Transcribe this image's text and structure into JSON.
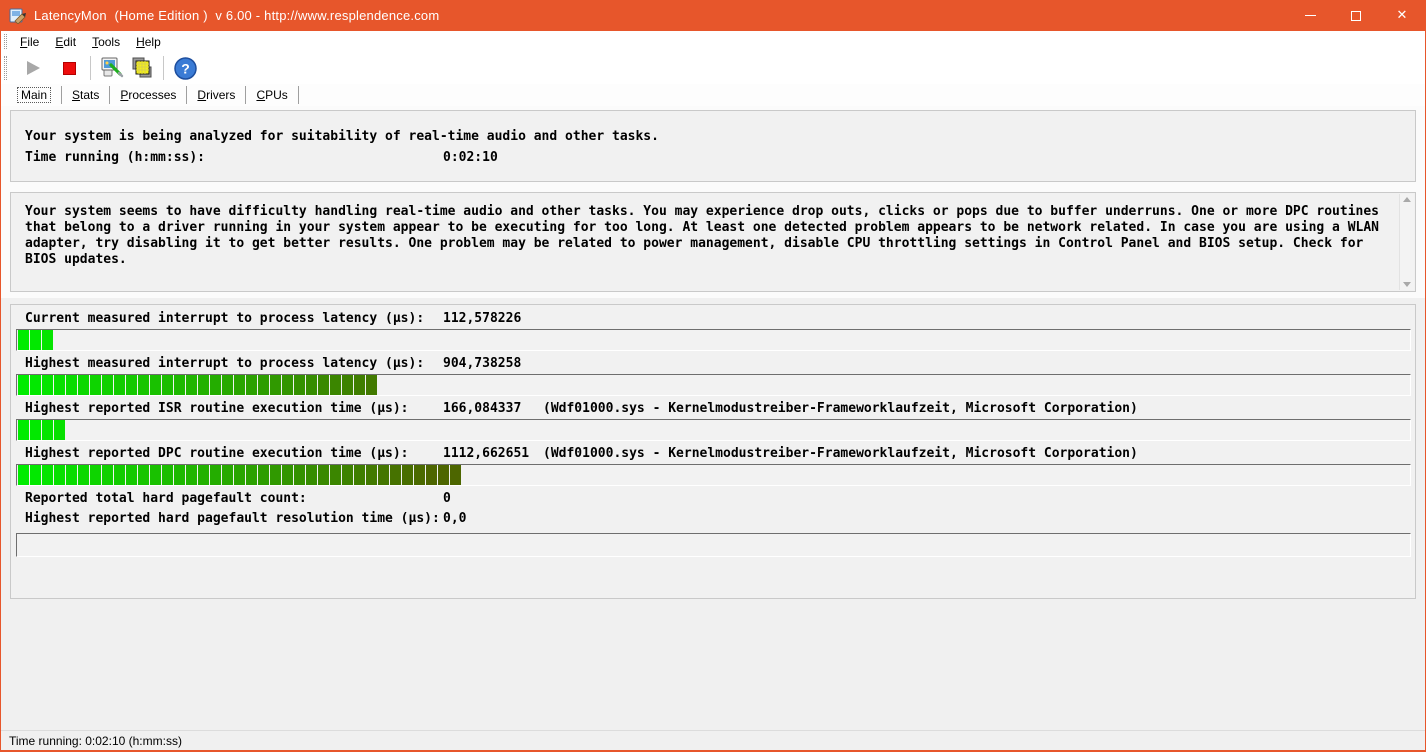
{
  "window": {
    "title": "LatencyMon  (Home Edition )  v 6.00 - http://www.resplendence.com"
  },
  "menu": {
    "items": [
      {
        "accel": "F",
        "rest": "ile"
      },
      {
        "accel": "E",
        "rest": "dit"
      },
      {
        "accel": "T",
        "rest": "ools"
      },
      {
        "accel": "H",
        "rest": "elp"
      }
    ]
  },
  "toolbar": {
    "buttons": [
      "play",
      "stop",
      "analyzer-options",
      "copy-report",
      "help"
    ]
  },
  "tabs": [
    {
      "accel": "",
      "rest": "Main",
      "selected": true
    },
    {
      "accel": "S",
      "rest": "tats",
      "selected": false
    },
    {
      "accel": "P",
      "rest": "rocesses",
      "selected": false
    },
    {
      "accel": "D",
      "rest": "rivers",
      "selected": false
    },
    {
      "accel": "C",
      "rest": "PUs",
      "selected": false
    }
  ],
  "analysis_panel": {
    "line1": "Your system is being analyzed for suitability of real-time audio and other tasks.",
    "time_label": "Time running (h:mm:ss):",
    "time_value": "0:02:10"
  },
  "report_panel": {
    "text": "Your system seems to have difficulty handling real-time audio and other tasks. You may experience drop outs, clicks or pops due to buffer underruns. One or more DPC routines that belong to a driver running in your system appear to be executing for too long. At least one detected problem appears to be network related. In case you are using a WLAN adapter, try disabling it to get better results. One problem may be related to power management, disable CPU throttling settings in Control Panel and BIOS setup. Check for BIOS updates."
  },
  "metrics": {
    "rows": [
      {
        "label": "Current measured interrupt to process latency (µs):",
        "value": "112,578226",
        "info": "",
        "has_bar": true,
        "bar_segments": 3
      },
      {
        "label": "Highest measured interrupt to process latency (µs):",
        "value": "904,738258",
        "info": "",
        "has_bar": true,
        "bar_segments": 30
      },
      {
        "label": "Highest reported ISR routine execution time (µs):",
        "value": "166,084337",
        "info": "(Wdf01000.sys - Kernelmodustreiber-Frameworklaufzeit, Microsoft Corporation)",
        "has_bar": true,
        "bar_segments": 4
      },
      {
        "label": "Highest reported DPC routine execution time (µs):",
        "value": "1112,662651",
        "info": "(Wdf01000.sys - Kernelmodustreiber-Frameworklaufzeit, Microsoft Corporation)",
        "has_bar": true,
        "bar_segments": 37
      },
      {
        "label": "Reported total hard pagefault count:",
        "value": "0",
        "info": "",
        "has_bar": false,
        "bar_segments": 0
      },
      {
        "label": "Highest reported hard pagefault resolution time (µs):",
        "value": "0,0",
        "info": "",
        "has_bar": false,
        "bar_segments": 0
      }
    ],
    "bar_colors": {
      "start_rgb": [
        0,
        236,
        0
      ],
      "end_rgb": [
        77,
        102,
        0
      ],
      "span": 34
    }
  },
  "statusbar": {
    "text": "Time running: 0:02:10  (h:mm:ss)"
  },
  "colors": {
    "accent_titlebar": "#E7562B",
    "stop_red": "#ED0C0C",
    "bar_bright_green": "#00EC00",
    "bar_dark_olive": "#4D6600"
  }
}
